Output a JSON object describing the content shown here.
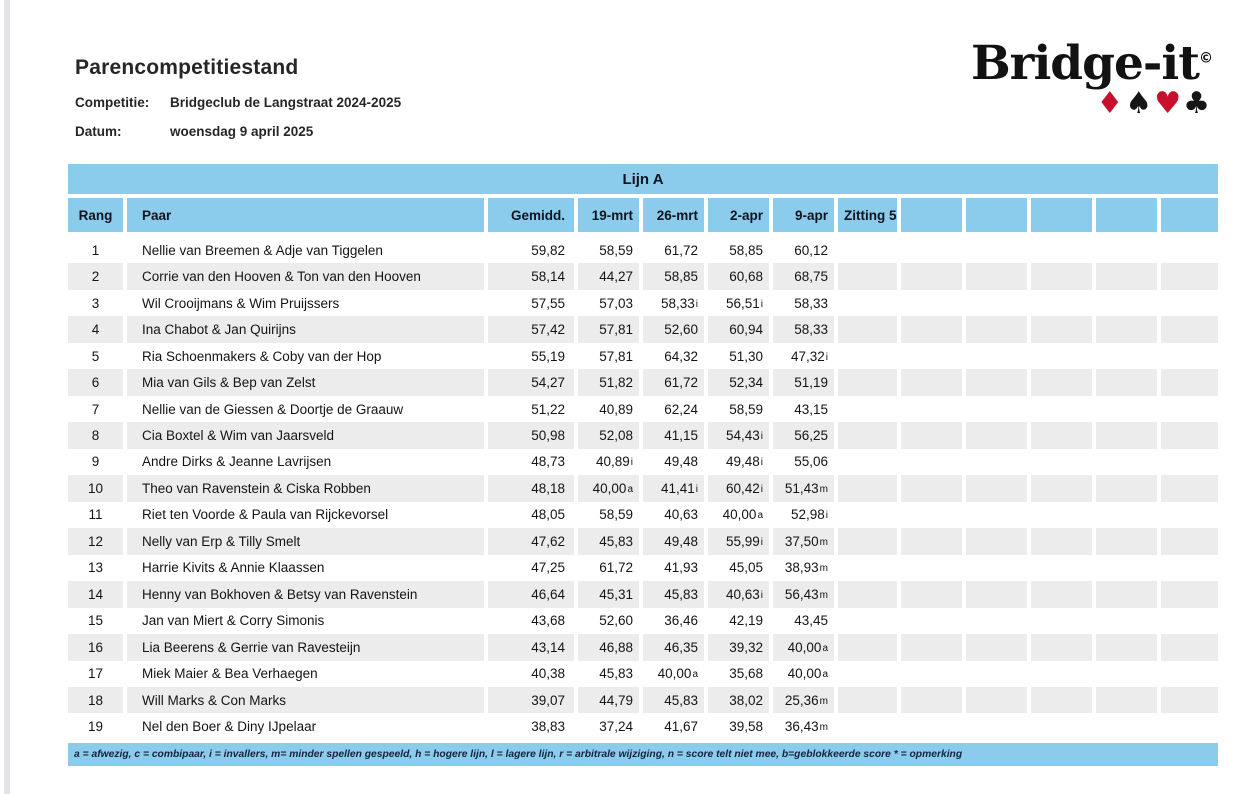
{
  "colors": {
    "header_blue": "#8bcbec",
    "stripe_gray": "#ececec",
    "suit_red": "#c8102e",
    "suit_black": "#151515"
  },
  "page": {
    "title": "Parencompetitiestand",
    "competitie_label": "Competitie:",
    "competitie_value": "Bridgeclub de Langstraat 2024-2025",
    "datum_label": "Datum:",
    "datum_value": "woensdag 9 april 2025"
  },
  "logo": {
    "text": "Bridge-it",
    "copyright": "©",
    "suits": [
      {
        "name": "diamond-icon",
        "glyph": "♦",
        "color": "#c8102e"
      },
      {
        "name": "spade-icon",
        "glyph": "♠",
        "color": "#151515"
      },
      {
        "name": "heart-icon",
        "glyph": "♥",
        "color": "#c8102e"
      },
      {
        "name": "club-icon",
        "glyph": "♣",
        "color": "#151515"
      }
    ]
  },
  "table": {
    "group_header": "Lijn A",
    "columns": [
      "Rang",
      "Paar",
      "Gemidd.",
      "19-mrt",
      "26-mrt",
      "2-apr",
      "9-apr",
      "Zitting 5",
      "",
      "",
      "",
      "",
      ""
    ],
    "rows": [
      {
        "rang": "1",
        "paar": "Nellie van Breemen & Adje van Tiggelen",
        "scores": [
          {
            "v": "59,82",
            "s": ""
          },
          {
            "v": "58,59",
            "s": ""
          },
          {
            "v": "61,72",
            "s": ""
          },
          {
            "v": "58,85",
            "s": ""
          },
          {
            "v": "60,12",
            "s": ""
          }
        ]
      },
      {
        "rang": "2",
        "paar": "Corrie van den Hooven & Ton van den Hooven",
        "scores": [
          {
            "v": "58,14",
            "s": ""
          },
          {
            "v": "44,27",
            "s": ""
          },
          {
            "v": "58,85",
            "s": ""
          },
          {
            "v": "60,68",
            "s": ""
          },
          {
            "v": "68,75",
            "s": ""
          }
        ]
      },
      {
        "rang": "3",
        "paar": "Wil Crooijmans & Wim Pruijssers",
        "scores": [
          {
            "v": "57,55",
            "s": ""
          },
          {
            "v": "57,03",
            "s": ""
          },
          {
            "v": "58,33",
            "s": "i"
          },
          {
            "v": "56,51",
            "s": "i"
          },
          {
            "v": "58,33",
            "s": ""
          }
        ]
      },
      {
        "rang": "4",
        "paar": "Ina Chabot & Jan Quirijns",
        "scores": [
          {
            "v": "57,42",
            "s": ""
          },
          {
            "v": "57,81",
            "s": ""
          },
          {
            "v": "52,60",
            "s": ""
          },
          {
            "v": "60,94",
            "s": ""
          },
          {
            "v": "58,33",
            "s": ""
          }
        ]
      },
      {
        "rang": "5",
        "paar": "Ria Schoenmakers & Coby van der Hop",
        "scores": [
          {
            "v": "55,19",
            "s": ""
          },
          {
            "v": "57,81",
            "s": ""
          },
          {
            "v": "64,32",
            "s": ""
          },
          {
            "v": "51,30",
            "s": ""
          },
          {
            "v": "47,32",
            "s": "i"
          }
        ]
      },
      {
        "rang": "6",
        "paar": "Mia van Gils & Bep van Zelst",
        "scores": [
          {
            "v": "54,27",
            "s": ""
          },
          {
            "v": "51,82",
            "s": ""
          },
          {
            "v": "61,72",
            "s": ""
          },
          {
            "v": "52,34",
            "s": ""
          },
          {
            "v": "51,19",
            "s": ""
          }
        ]
      },
      {
        "rang": "7",
        "paar": "Nellie van de Giessen & Doortje de Graauw",
        "scores": [
          {
            "v": "51,22",
            "s": ""
          },
          {
            "v": "40,89",
            "s": ""
          },
          {
            "v": "62,24",
            "s": ""
          },
          {
            "v": "58,59",
            "s": ""
          },
          {
            "v": "43,15",
            "s": ""
          }
        ]
      },
      {
        "rang": "8",
        "paar": "Cia Boxtel & Wim van Jaarsveld",
        "scores": [
          {
            "v": "50,98",
            "s": ""
          },
          {
            "v": "52,08",
            "s": ""
          },
          {
            "v": "41,15",
            "s": ""
          },
          {
            "v": "54,43",
            "s": "i"
          },
          {
            "v": "56,25",
            "s": ""
          }
        ]
      },
      {
        "rang": "9",
        "paar": "Andre Dirks & Jeanne Lavrijsen",
        "scores": [
          {
            "v": "48,73",
            "s": ""
          },
          {
            "v": "40,89",
            "s": "i"
          },
          {
            "v": "49,48",
            "s": ""
          },
          {
            "v": "49,48",
            "s": "i"
          },
          {
            "v": "55,06",
            "s": ""
          }
        ]
      },
      {
        "rang": "10",
        "paar": "Theo van Ravenstein & Ciska Robben",
        "scores": [
          {
            "v": "48,18",
            "s": ""
          },
          {
            "v": "40,00",
            "s": "a"
          },
          {
            "v": "41,41",
            "s": "i"
          },
          {
            "v": "60,42",
            "s": "i"
          },
          {
            "v": "51,43",
            "s": "m"
          }
        ]
      },
      {
        "rang": "11",
        "paar": "Riet ten Voorde & Paula van Rijckevorsel",
        "scores": [
          {
            "v": "48,05",
            "s": ""
          },
          {
            "v": "58,59",
            "s": ""
          },
          {
            "v": "40,63",
            "s": ""
          },
          {
            "v": "40,00",
            "s": "a"
          },
          {
            "v": "52,98",
            "s": "i"
          }
        ]
      },
      {
        "rang": "12",
        "paar": "Nelly van Erp & Tilly Smelt",
        "scores": [
          {
            "v": "47,62",
            "s": ""
          },
          {
            "v": "45,83",
            "s": ""
          },
          {
            "v": "49,48",
            "s": ""
          },
          {
            "v": "55,99",
            "s": "i"
          },
          {
            "v": "37,50",
            "s": "m"
          }
        ]
      },
      {
        "rang": "13",
        "paar": "Harrie Kivits & Annie Klaassen",
        "scores": [
          {
            "v": "47,25",
            "s": ""
          },
          {
            "v": "61,72",
            "s": ""
          },
          {
            "v": "41,93",
            "s": ""
          },
          {
            "v": "45,05",
            "s": ""
          },
          {
            "v": "38,93",
            "s": "m"
          }
        ]
      },
      {
        "rang": "14",
        "paar": "Henny van Bokhoven & Betsy van Ravenstein",
        "scores": [
          {
            "v": "46,64",
            "s": ""
          },
          {
            "v": "45,31",
            "s": ""
          },
          {
            "v": "45,83",
            "s": ""
          },
          {
            "v": "40,63",
            "s": "i"
          },
          {
            "v": "56,43",
            "s": "m"
          }
        ]
      },
      {
        "rang": "15",
        "paar": "Jan van Miert & Corry Simonis",
        "scores": [
          {
            "v": "43,68",
            "s": ""
          },
          {
            "v": "52,60",
            "s": ""
          },
          {
            "v": "36,46",
            "s": ""
          },
          {
            "v": "42,19",
            "s": ""
          },
          {
            "v": "43,45",
            "s": ""
          }
        ]
      },
      {
        "rang": "16",
        "paar": "Lia Beerens & Gerrie van Ravesteijn",
        "scores": [
          {
            "v": "43,14",
            "s": ""
          },
          {
            "v": "46,88",
            "s": ""
          },
          {
            "v": "46,35",
            "s": ""
          },
          {
            "v": "39,32",
            "s": ""
          },
          {
            "v": "40,00",
            "s": "a"
          }
        ]
      },
      {
        "rang": "17",
        "paar": "Miek Maier & Bea Verhaegen",
        "scores": [
          {
            "v": "40,38",
            "s": ""
          },
          {
            "v": "45,83",
            "s": ""
          },
          {
            "v": "40,00",
            "s": "a"
          },
          {
            "v": "35,68",
            "s": ""
          },
          {
            "v": "40,00",
            "s": "a"
          }
        ]
      },
      {
        "rang": "18",
        "paar": "Will Marks & Con Marks",
        "scores": [
          {
            "v": "39,07",
            "s": ""
          },
          {
            "v": "44,79",
            "s": ""
          },
          {
            "v": "45,83",
            "s": ""
          },
          {
            "v": "38,02",
            "s": ""
          },
          {
            "v": "25,36",
            "s": "m"
          }
        ]
      },
      {
        "rang": "19",
        "paar": "Nel den Boer & Diny IJpelaar",
        "scores": [
          {
            "v": "38,83",
            "s": ""
          },
          {
            "v": "37,24",
            "s": ""
          },
          {
            "v": "41,67",
            "s": ""
          },
          {
            "v": "39,58",
            "s": ""
          },
          {
            "v": "36,43",
            "s": "m"
          }
        ]
      }
    ],
    "footnote": "a = afwezig, c = combipaar, i = invallers, m= minder spellen gespeeld, h = hogere lijn, l = lagere lijn, r = arbitrale wijziging, n = score telt niet mee, b=geblokkeerde score  * = opmerking"
  }
}
